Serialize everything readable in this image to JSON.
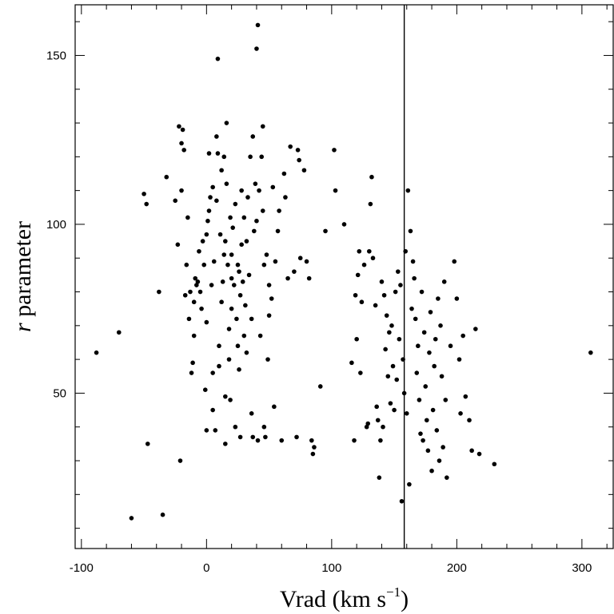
{
  "chart_data": {
    "type": "scatter",
    "xlabel": "Vrad (km s",
    "xlabel_sup": "−1",
    "xlabel_close": ")",
    "ylabel_italic": "r",
    "ylabel": " parameter",
    "xlim": [
      -105,
      325
    ],
    "ylim": [
      4,
      165
    ],
    "x_ticks": [
      -100,
      0,
      100,
      200,
      300
    ],
    "x_tick_labels": [
      "-100",
      "0",
      "100",
      "200",
      "300"
    ],
    "y_ticks": [
      50,
      100,
      150
    ],
    "y_tick_labels": [
      "50",
      "100",
      "150"
    ],
    "reference_line_x": 158,
    "grid": false,
    "legend": "none",
    "marker_color": "#000000",
    "points": [
      [
        -88,
        62
      ],
      [
        -70,
        68
      ],
      [
        -60,
        13
      ],
      [
        -50,
        109
      ],
      [
        -48,
        106
      ],
      [
        -47,
        35
      ],
      [
        -38,
        80
      ],
      [
        -35,
        14
      ],
      [
        -32,
        114
      ],
      [
        -25,
        107
      ],
      [
        -23,
        94
      ],
      [
        -22,
        129
      ],
      [
        -21,
        30
      ],
      [
        -20,
        110
      ],
      [
        -20,
        124
      ],
      [
        -19,
        128
      ],
      [
        -18,
        122
      ],
      [
        -17,
        79
      ],
      [
        -16,
        88
      ],
      [
        -15,
        102
      ],
      [
        -14,
        72
      ],
      [
        -13,
        80
      ],
      [
        -12,
        56
      ],
      [
        -11,
        59
      ],
      [
        -10,
        67
      ],
      [
        -10,
        77
      ],
      [
        -9,
        84
      ],
      [
        -8,
        82
      ],
      [
        -7,
        83
      ],
      [
        -6,
        92
      ],
      [
        -5,
        80
      ],
      [
        -4,
        75
      ],
      [
        -3,
        95
      ],
      [
        -2,
        88
      ],
      [
        -1,
        51
      ],
      [
        0,
        39
      ],
      [
        0,
        71
      ],
      [
        0,
        97
      ],
      [
        1,
        101
      ],
      [
        2,
        121
      ],
      [
        2,
        104
      ],
      [
        3,
        108
      ],
      [
        4,
        82
      ],
      [
        5,
        111
      ],
      [
        5,
        56
      ],
      [
        5,
        45
      ],
      [
        6,
        89
      ],
      [
        7,
        39
      ],
      [
        8,
        107
      ],
      [
        8,
        126
      ],
      [
        9,
        121
      ],
      [
        9,
        149
      ],
      [
        10,
        64
      ],
      [
        10,
        58
      ],
      [
        11,
        97
      ],
      [
        12,
        116
      ],
      [
        12,
        77
      ],
      [
        13,
        83
      ],
      [
        14,
        120
      ],
      [
        14,
        91
      ],
      [
        15,
        95
      ],
      [
        15,
        49
      ],
      [
        15,
        35
      ],
      [
        16,
        130
      ],
      [
        16,
        112
      ],
      [
        17,
        88
      ],
      [
        18,
        69
      ],
      [
        18,
        60
      ],
      [
        19,
        102
      ],
      [
        19,
        48
      ],
      [
        20,
        91
      ],
      [
        20,
        84
      ],
      [
        20,
        75
      ],
      [
        21,
        99
      ],
      [
        22,
        82
      ],
      [
        23,
        106
      ],
      [
        23,
        40
      ],
      [
        24,
        72
      ],
      [
        25,
        88
      ],
      [
        25,
        64
      ],
      [
        26,
        86
      ],
      [
        26,
        57
      ],
      [
        27,
        79
      ],
      [
        27,
        37
      ],
      [
        28,
        110
      ],
      [
        28,
        94
      ],
      [
        29,
        83
      ],
      [
        30,
        102
      ],
      [
        30,
        67
      ],
      [
        31,
        76
      ],
      [
        32,
        62
      ],
      [
        32,
        95
      ],
      [
        33,
        108
      ],
      [
        34,
        85
      ],
      [
        35,
        120
      ],
      [
        36,
        72
      ],
      [
        36,
        44
      ],
      [
        37,
        126
      ],
      [
        37,
        37
      ],
      [
        38,
        98
      ],
      [
        39,
        112
      ],
      [
        40,
        152
      ],
      [
        40,
        101
      ],
      [
        41,
        159
      ],
      [
        41,
        36
      ],
      [
        42,
        110
      ],
      [
        43,
        67
      ],
      [
        44,
        120
      ],
      [
        45,
        104
      ],
      [
        45,
        129
      ],
      [
        46,
        88
      ],
      [
        46,
        40
      ],
      [
        47,
        37
      ],
      [
        48,
        91
      ],
      [
        49,
        60
      ],
      [
        50,
        82
      ],
      [
        50,
        73
      ],
      [
        52,
        78
      ],
      [
        53,
        111
      ],
      [
        54,
        46
      ],
      [
        55,
        89
      ],
      [
        57,
        98
      ],
      [
        58,
        104
      ],
      [
        60,
        36
      ],
      [
        62,
        115
      ],
      [
        63,
        108
      ],
      [
        65,
        84
      ],
      [
        67,
        123
      ],
      [
        70,
        86
      ],
      [
        72,
        37
      ],
      [
        73,
        122
      ],
      [
        74,
        119
      ],
      [
        75,
        90
      ],
      [
        78,
        116
      ],
      [
        80,
        89
      ],
      [
        82,
        84
      ],
      [
        84,
        36
      ],
      [
        85,
        32
      ],
      [
        86,
        34
      ],
      [
        91,
        52
      ],
      [
        95,
        98
      ],
      [
        102,
        122
      ],
      [
        103,
        110
      ],
      [
        110,
        100
      ],
      [
        116,
        59
      ],
      [
        118,
        36
      ],
      [
        119,
        79
      ],
      [
        120,
        66
      ],
      [
        121,
        85
      ],
      [
        122,
        92
      ],
      [
        123,
        56
      ],
      [
        124,
        77
      ],
      [
        126,
        88
      ],
      [
        128,
        40
      ],
      [
        129,
        41
      ],
      [
        130,
        92
      ],
      [
        131,
        106
      ],
      [
        132,
        114
      ],
      [
        133,
        90
      ],
      [
        135,
        76
      ],
      [
        136,
        46
      ],
      [
        137,
        42
      ],
      [
        138,
        25
      ],
      [
        139,
        36
      ],
      [
        140,
        83
      ],
      [
        141,
        40
      ],
      [
        142,
        79
      ],
      [
        143,
        63
      ],
      [
        144,
        73
      ],
      [
        145,
        55
      ],
      [
        146,
        68
      ],
      [
        147,
        47
      ],
      [
        148,
        70
      ],
      [
        149,
        58
      ],
      [
        150,
        45
      ],
      [
        151,
        80
      ],
      [
        152,
        54
      ],
      [
        153,
        86
      ],
      [
        154,
        66
      ],
      [
        155,
        82
      ],
      [
        156,
        18
      ],
      [
        157,
        60
      ],
      [
        158,
        50
      ],
      [
        159,
        92
      ],
      [
        160,
        44
      ],
      [
        161,
        110
      ],
      [
        162,
        23
      ],
      [
        163,
        98
      ],
      [
        164,
        75
      ],
      [
        165,
        89
      ],
      [
        166,
        84
      ],
      [
        167,
        72
      ],
      [
        168,
        56
      ],
      [
        169,
        64
      ],
      [
        170,
        48
      ],
      [
        171,
        38
      ],
      [
        172,
        80
      ],
      [
        173,
        36
      ],
      [
        174,
        68
      ],
      [
        175,
        52
      ],
      [
        176,
        42
      ],
      [
        177,
        33
      ],
      [
        178,
        62
      ],
      [
        179,
        74
      ],
      [
        180,
        27
      ],
      [
        181,
        45
      ],
      [
        182,
        58
      ],
      [
        183,
        66
      ],
      [
        184,
        39
      ],
      [
        185,
        78
      ],
      [
        186,
        30
      ],
      [
        187,
        70
      ],
      [
        188,
        55
      ],
      [
        189,
        34
      ],
      [
        190,
        83
      ],
      [
        191,
        48
      ],
      [
        192,
        25
      ],
      [
        195,
        64
      ],
      [
        198,
        89
      ],
      [
        200,
        78
      ],
      [
        202,
        60
      ],
      [
        203,
        44
      ],
      [
        205,
        67
      ],
      [
        207,
        49
      ],
      [
        210,
        42
      ],
      [
        212,
        33
      ],
      [
        215,
        69
      ],
      [
        218,
        32
      ],
      [
        230,
        29
      ],
      [
        307,
        62
      ]
    ]
  }
}
